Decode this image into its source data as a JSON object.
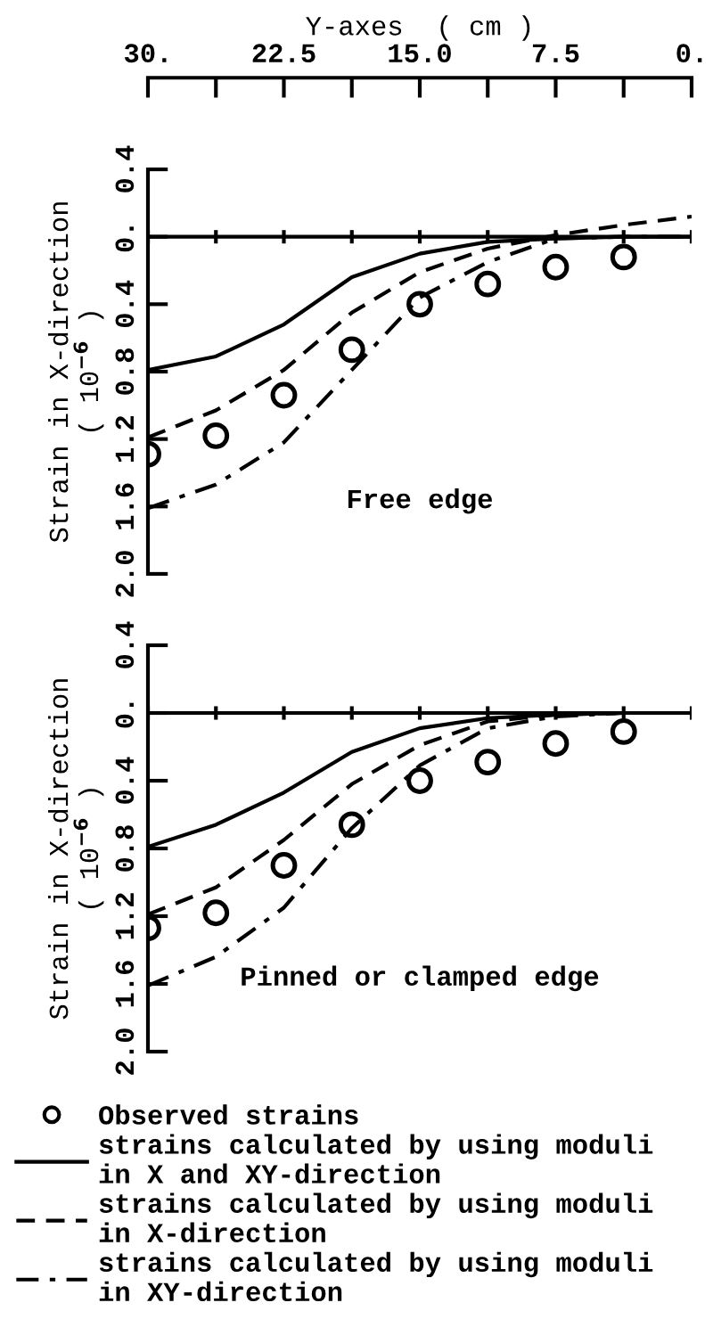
{
  "chart_data": [
    {
      "type": "line",
      "xlabel": "Y-axes  ( cm )",
      "ylabel": "Strain in X-direction\n( 10$^{−6}$ )",
      "x": [
        30,
        26.25,
        22.5,
        18.75,
        15,
        11.25,
        7.5,
        3.75,
        0
      ],
      "xlim": [
        30,
        0
      ],
      "xticks": [
        {
          "value": 30,
          "label": "30."
        },
        {
          "value": 26.25,
          "label": null
        },
        {
          "value": 22.5,
          "label": "22.5"
        },
        {
          "value": 18.75,
          "label": null
        },
        {
          "value": 15,
          "label": "15.0"
        },
        {
          "value": 11.25,
          "label": null
        },
        {
          "value": 7.5,
          "label": "7.5"
        },
        {
          "value": 3.75,
          "label": null
        },
        {
          "value": 0,
          "label": "0."
        }
      ],
      "ylim": [
        2.0,
        -0.4
      ],
      "yticks": [
        {
          "value": -0.4,
          "label": "0.4"
        },
        {
          "value": 0,
          "label": "0."
        },
        0.4,
        0.8,
        1.2,
        1.6,
        {
          "value": 2,
          "label": "2.0"
        }
      ],
      "series": [
        {
          "name": "Observed strains",
          "type": "scatter",
          "marker": "circle",
          "color": "#000000",
          "x": [
            30,
            26.25,
            22.5,
            18.75,
            15,
            11.25,
            7.5,
            3.75
          ],
          "values": [
            1.29,
            1.18,
            0.94,
            0.67,
            0.4,
            0.28,
            0.18,
            0.12
          ]
        },
        {
          "name": "strains calculated by using moduli\nin X and XY-direction",
          "line_style": "solid",
          "color": "#000000",
          "values": [
            0.79,
            0.71,
            0.52,
            0.24,
            0.1,
            0.03,
            0.01,
            0.0,
            0.0
          ]
        },
        {
          "name": "strains calculated by using moduli\nin X-direction",
          "line_style": "dashed",
          "color": "#000000",
          "values": [
            1.19,
            1.03,
            0.79,
            0.45,
            0.21,
            0.07,
            -0.01,
            -0.07,
            -0.12
          ]
        },
        {
          "name": "strains calculated by using moduli\nin XY-direction",
          "line_style": "dashdot",
          "color": "#000000",
          "values": [
            1.61,
            1.47,
            1.22,
            0.79,
            0.36,
            0.15,
            0.01,
            0.0,
            0.0
          ]
        }
      ],
      "ref_lines": [
        {
          "axis": "y",
          "value": 0,
          "color": "#000000"
        }
      ],
      "annotations": [
        "Free edge"
      ],
      "grid": false,
      "legend": "bottom"
    },
    {
      "type": "line",
      "ylabel": "Strain in X-direction\n( 10$^{−6}$ )",
      "tick_labels": "y",
      "x": [
        30,
        26.25,
        22.5,
        18.75,
        15,
        11.25,
        7.5,
        3.75,
        0
      ],
      "xlim": [
        30,
        0
      ],
      "xticks": [
        {
          "value": 30,
          "label": null
        },
        {
          "value": 26.25,
          "label": null
        },
        {
          "value": 22.5,
          "label": null
        },
        {
          "value": 18.75,
          "label": null
        },
        {
          "value": 15,
          "label": null
        },
        {
          "value": 11.25,
          "label": null
        },
        {
          "value": 7.5,
          "label": null
        },
        {
          "value": 3.75,
          "label": null
        },
        {
          "value": 0,
          "label": null
        }
      ],
      "ylim": [
        2.0,
        -0.4
      ],
      "yticks": [
        {
          "value": -0.4,
          "label": "0.4"
        },
        {
          "value": 0,
          "label": "0."
        },
        0.4,
        0.8,
        1.2,
        1.6,
        {
          "value": 2,
          "label": "2.0"
        }
      ],
      "series": [
        {
          "type": "scatter",
          "marker": "circle",
          "color": "#000000",
          "x": [
            30,
            26.25,
            22.5,
            18.75,
            15,
            11.25,
            7.5,
            3.75
          ],
          "values": [
            1.27,
            1.18,
            0.9,
            0.66,
            0.4,
            0.29,
            0.18,
            0.11
          ]
        },
        {
          "line_style": "solid",
          "color": "#000000",
          "values": [
            0.79,
            0.66,
            0.47,
            0.23,
            0.09,
            0.03,
            0.01,
            0.0,
            0.0
          ]
        },
        {
          "line_style": "dashed",
          "color": "#000000",
          "values": [
            1.19,
            1.03,
            0.75,
            0.42,
            0.19,
            0.05,
            0.01,
            0.0,
            0.0
          ]
        },
        {
          "line_style": "dashdot",
          "color": "#000000",
          "values": [
            1.61,
            1.44,
            1.15,
            0.68,
            0.31,
            0.09,
            0.02,
            0.0,
            0.0
          ]
        }
      ],
      "ref_lines": [
        {
          "axis": "y",
          "value": 0,
          "color": "#000000"
        }
      ],
      "annotations": [
        "Pinned or clamped edge"
      ],
      "grid": false
    }
  ]
}
